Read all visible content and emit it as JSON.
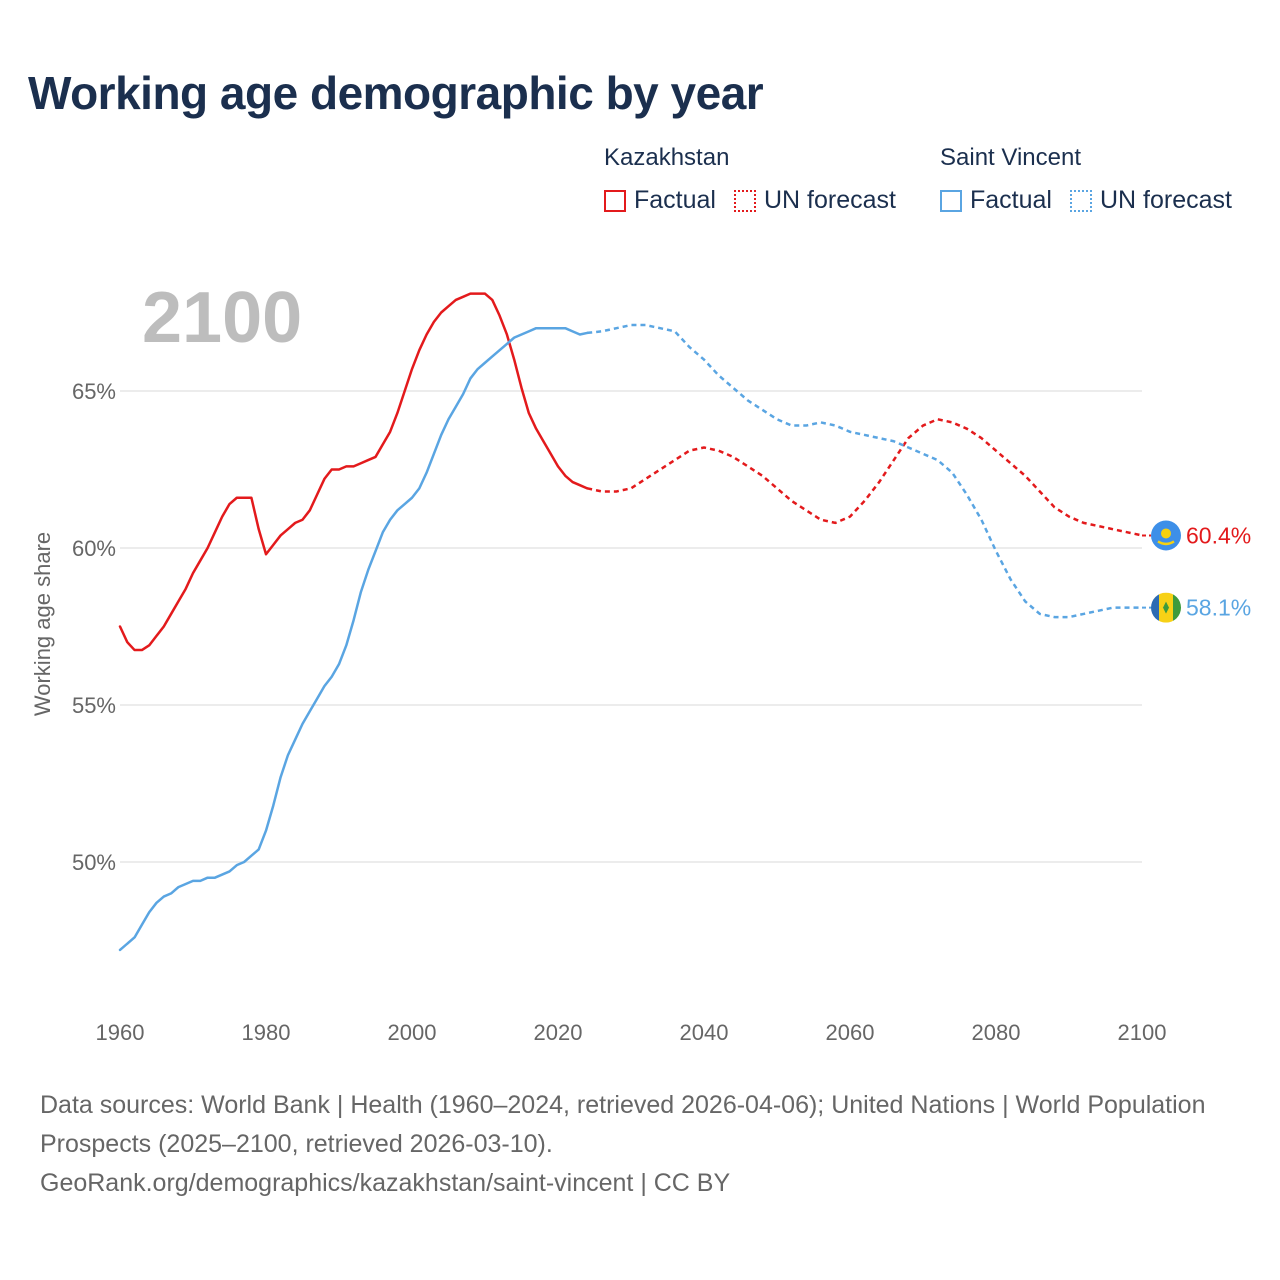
{
  "title": "Working age demographic by year",
  "year_label": "2100",
  "legend": {
    "groups": [
      {
        "country": "Kazakhstan",
        "factual_label": "Factual",
        "forecast_label": "UN forecast",
        "color": "#e31a1c"
      },
      {
        "country": "Saint Vincent",
        "factual_label": "Factual",
        "forecast_label": "UN forecast",
        "color": "#5aa5e2"
      }
    ]
  },
  "footer": {
    "sources": "Data sources: World Bank | Health (1960–2024, retrieved 2026-04-06); United Nations | World Population Prospects (2025–2100, retrieved 2026-03-10).",
    "url": "GeoRank.org/demographics/kazakhstan/saint-vincent | CC BY"
  },
  "colors": {
    "kazakhstan": "#e31a1c",
    "saint_vincent": "#5aa5e2",
    "kz_flag": "#3d8fe8",
    "grid": "#e6e6e6"
  },
  "chart_data": {
    "type": "line",
    "title": "Working age demographic by year",
    "xlabel": "",
    "ylabel": "Working age share",
    "xlim": [
      1960,
      2100
    ],
    "ylim": [
      47,
      68.5
    ],
    "x_ticks": [
      1960,
      1980,
      2000,
      2020,
      2040,
      2060,
      2080,
      2100
    ],
    "y_ticks": [
      {
        "value": 50,
        "label": "50%"
      },
      {
        "value": 55,
        "label": "55%"
      },
      {
        "value": 60,
        "label": "60%"
      },
      {
        "value": 65,
        "label": "65%"
      }
    ],
    "forecast_start": 2024,
    "series": [
      {
        "name": "Kazakhstan",
        "key": "kazakhstan",
        "color": "#e31a1c",
        "end_label": "60.4%",
        "points": [
          [
            1960,
            57.5
          ],
          [
            1961,
            57.0
          ],
          [
            1962,
            56.75
          ],
          [
            1963,
            56.75
          ],
          [
            1964,
            56.9
          ],
          [
            1965,
            57.2
          ],
          [
            1966,
            57.5
          ],
          [
            1967,
            57.9
          ],
          [
            1968,
            58.3
          ],
          [
            1969,
            58.7
          ],
          [
            1970,
            59.2
          ],
          [
            1971,
            59.6
          ],
          [
            1972,
            60.0
          ],
          [
            1973,
            60.5
          ],
          [
            1974,
            61.0
          ],
          [
            1975,
            61.4
          ],
          [
            1976,
            61.6
          ],
          [
            1977,
            61.6
          ],
          [
            1978,
            61.6
          ],
          [
            1979,
            60.6
          ],
          [
            1980,
            59.8
          ],
          [
            1981,
            60.1
          ],
          [
            1982,
            60.4
          ],
          [
            1983,
            60.6
          ],
          [
            1984,
            60.8
          ],
          [
            1985,
            60.9
          ],
          [
            1986,
            61.2
          ],
          [
            1987,
            61.7
          ],
          [
            1988,
            62.2
          ],
          [
            1989,
            62.5
          ],
          [
            1990,
            62.5
          ],
          [
            1991,
            62.6
          ],
          [
            1992,
            62.6
          ],
          [
            1993,
            62.7
          ],
          [
            1994,
            62.8
          ],
          [
            1995,
            62.9
          ],
          [
            1996,
            63.3
          ],
          [
            1997,
            63.7
          ],
          [
            1998,
            64.3
          ],
          [
            1999,
            65.0
          ],
          [
            2000,
            65.7
          ],
          [
            2001,
            66.3
          ],
          [
            2002,
            66.8
          ],
          [
            2003,
            67.2
          ],
          [
            2004,
            67.5
          ],
          [
            2005,
            67.7
          ],
          [
            2006,
            67.9
          ],
          [
            2007,
            68.0
          ],
          [
            2008,
            68.1
          ],
          [
            2009,
            68.1
          ],
          [
            2010,
            68.1
          ],
          [
            2011,
            67.9
          ],
          [
            2012,
            67.4
          ],
          [
            2013,
            66.8
          ],
          [
            2014,
            66.0
          ],
          [
            2015,
            65.1
          ],
          [
            2016,
            64.3
          ],
          [
            2017,
            63.8
          ],
          [
            2018,
            63.4
          ],
          [
            2019,
            63.0
          ],
          [
            2020,
            62.6
          ],
          [
            2021,
            62.3
          ],
          [
            2022,
            62.1
          ],
          [
            2023,
            62.0
          ],
          [
            2024,
            61.9
          ],
          [
            2026,
            61.8
          ],
          [
            2028,
            61.8
          ],
          [
            2030,
            61.9
          ],
          [
            2032,
            62.2
          ],
          [
            2034,
            62.5
          ],
          [
            2036,
            62.8
          ],
          [
            2038,
            63.1
          ],
          [
            2040,
            63.2
          ],
          [
            2042,
            63.1
          ],
          [
            2044,
            62.9
          ],
          [
            2046,
            62.6
          ],
          [
            2048,
            62.3
          ],
          [
            2050,
            61.9
          ],
          [
            2052,
            61.5
          ],
          [
            2054,
            61.2
          ],
          [
            2056,
            60.9
          ],
          [
            2058,
            60.8
          ],
          [
            2060,
            61.0
          ],
          [
            2062,
            61.5
          ],
          [
            2064,
            62.1
          ],
          [
            2066,
            62.8
          ],
          [
            2068,
            63.5
          ],
          [
            2070,
            63.9
          ],
          [
            2072,
            64.1
          ],
          [
            2074,
            64.0
          ],
          [
            2076,
            63.8
          ],
          [
            2078,
            63.5
          ],
          [
            2080,
            63.1
          ],
          [
            2082,
            62.7
          ],
          [
            2084,
            62.3
          ],
          [
            2086,
            61.8
          ],
          [
            2088,
            61.3
          ],
          [
            2090,
            61.0
          ],
          [
            2092,
            60.8
          ],
          [
            2094,
            60.7
          ],
          [
            2096,
            60.6
          ],
          [
            2098,
            60.5
          ],
          [
            2100,
            60.4
          ]
        ]
      },
      {
        "name": "Saint Vincent",
        "key": "saint_vincent",
        "color": "#5aa5e2",
        "end_label": "58.1%",
        "points": [
          [
            1960,
            47.2
          ],
          [
            1961,
            47.4
          ],
          [
            1962,
            47.6
          ],
          [
            1963,
            48.0
          ],
          [
            1964,
            48.4
          ],
          [
            1965,
            48.7
          ],
          [
            1966,
            48.9
          ],
          [
            1967,
            49.0
          ],
          [
            1968,
            49.2
          ],
          [
            1969,
            49.3
          ],
          [
            1970,
            49.4
          ],
          [
            1971,
            49.4
          ],
          [
            1972,
            49.5
          ],
          [
            1973,
            49.5
          ],
          [
            1974,
            49.6
          ],
          [
            1975,
            49.7
          ],
          [
            1976,
            49.9
          ],
          [
            1977,
            50.0
          ],
          [
            1978,
            50.2
          ],
          [
            1979,
            50.4
          ],
          [
            1980,
            51.0
          ],
          [
            1981,
            51.8
          ],
          [
            1982,
            52.7
          ],
          [
            1983,
            53.4
          ],
          [
            1984,
            53.9
          ],
          [
            1985,
            54.4
          ],
          [
            1986,
            54.8
          ],
          [
            1987,
            55.2
          ],
          [
            1988,
            55.6
          ],
          [
            1989,
            55.9
          ],
          [
            1990,
            56.3
          ],
          [
            1991,
            56.9
          ],
          [
            1992,
            57.7
          ],
          [
            1993,
            58.6
          ],
          [
            1994,
            59.3
          ],
          [
            1995,
            59.9
          ],
          [
            1996,
            60.5
          ],
          [
            1997,
            60.9
          ],
          [
            1998,
            61.2
          ],
          [
            1999,
            61.4
          ],
          [
            2000,
            61.6
          ],
          [
            2001,
            61.9
          ],
          [
            2002,
            62.4
          ],
          [
            2003,
            63.0
          ],
          [
            2004,
            63.6
          ],
          [
            2005,
            64.1
          ],
          [
            2006,
            64.5
          ],
          [
            2007,
            64.9
          ],
          [
            2008,
            65.4
          ],
          [
            2009,
            65.7
          ],
          [
            2010,
            65.9
          ],
          [
            2011,
            66.1
          ],
          [
            2012,
            66.3
          ],
          [
            2013,
            66.5
          ],
          [
            2014,
            66.7
          ],
          [
            2015,
            66.8
          ],
          [
            2016,
            66.9
          ],
          [
            2017,
            67.0
          ],
          [
            2018,
            67.0
          ],
          [
            2019,
            67.0
          ],
          [
            2020,
            67.0
          ],
          [
            2021,
            67.0
          ],
          [
            2022,
            66.9
          ],
          [
            2023,
            66.8
          ],
          [
            2024,
            66.85
          ],
          [
            2026,
            66.9
          ],
          [
            2028,
            67.0
          ],
          [
            2030,
            67.1
          ],
          [
            2032,
            67.1
          ],
          [
            2034,
            67.0
          ],
          [
            2036,
            66.9
          ],
          [
            2038,
            66.4
          ],
          [
            2040,
            66.0
          ],
          [
            2042,
            65.5
          ],
          [
            2044,
            65.1
          ],
          [
            2046,
            64.7
          ],
          [
            2048,
            64.4
          ],
          [
            2050,
            64.1
          ],
          [
            2052,
            63.9
          ],
          [
            2054,
            63.9
          ],
          [
            2056,
            64.0
          ],
          [
            2058,
            63.9
          ],
          [
            2060,
            63.7
          ],
          [
            2062,
            63.6
          ],
          [
            2064,
            63.5
          ],
          [
            2066,
            63.4
          ],
          [
            2068,
            63.2
          ],
          [
            2070,
            63.0
          ],
          [
            2072,
            62.8
          ],
          [
            2074,
            62.4
          ],
          [
            2076,
            61.7
          ],
          [
            2078,
            60.9
          ],
          [
            2080,
            59.9
          ],
          [
            2082,
            59.0
          ],
          [
            2084,
            58.3
          ],
          [
            2086,
            57.9
          ],
          [
            2088,
            57.8
          ],
          [
            2090,
            57.8
          ],
          [
            2092,
            57.9
          ],
          [
            2094,
            58.0
          ],
          [
            2096,
            58.1
          ],
          [
            2098,
            58.1
          ],
          [
            2100,
            58.1
          ]
        ]
      }
    ]
  }
}
